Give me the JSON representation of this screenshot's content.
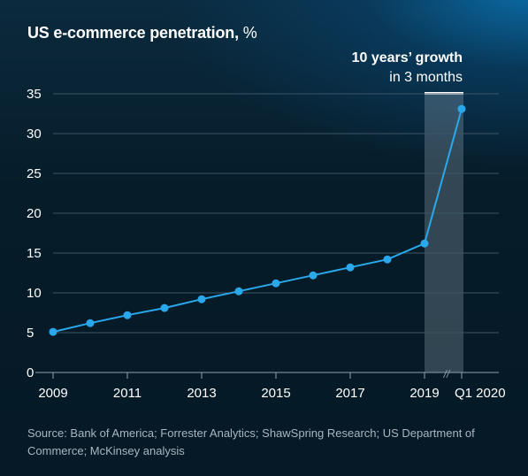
{
  "title": "US e-commerce penetration,",
  "title_unit": "%",
  "source": "Source: Bank of America; Forrester Analytics; ShawSpring Research; US Department of Commerce; McKinsey analysis",
  "annotation": {
    "bold": "10 years’ growth",
    "regular": "in 3 months"
  },
  "colors": {
    "line": "#2aa8ec",
    "highlight": "#ffffff",
    "grid": "#3c5566"
  },
  "chart_data": {
    "type": "line",
    "title": "US e-commerce penetration, %",
    "xlabel": "",
    "ylabel": "",
    "ylim": [
      0,
      35
    ],
    "yticks": [
      "0",
      "5",
      "10",
      "15",
      "20",
      "25",
      "30",
      "35"
    ],
    "x": [
      "2009",
      "2010",
      "2011",
      "2012",
      "2013",
      "2014",
      "2015",
      "2016",
      "2017",
      "2018",
      "2019",
      "Q1 2020"
    ],
    "xtick_labels": [
      "2009",
      "2011",
      "2013",
      "2015",
      "2017",
      "2019",
      "Q1 2020"
    ],
    "series": [
      {
        "values": [
          5.1,
          6.2,
          7.2,
          8.1,
          9.2,
          10.2,
          11.2,
          12.2,
          13.2,
          14.2,
          16.2,
          33.1
        ]
      }
    ],
    "axis_break": "//",
    "grid": true,
    "highlight_range": [
      "2019",
      "Q1 2020"
    ]
  }
}
